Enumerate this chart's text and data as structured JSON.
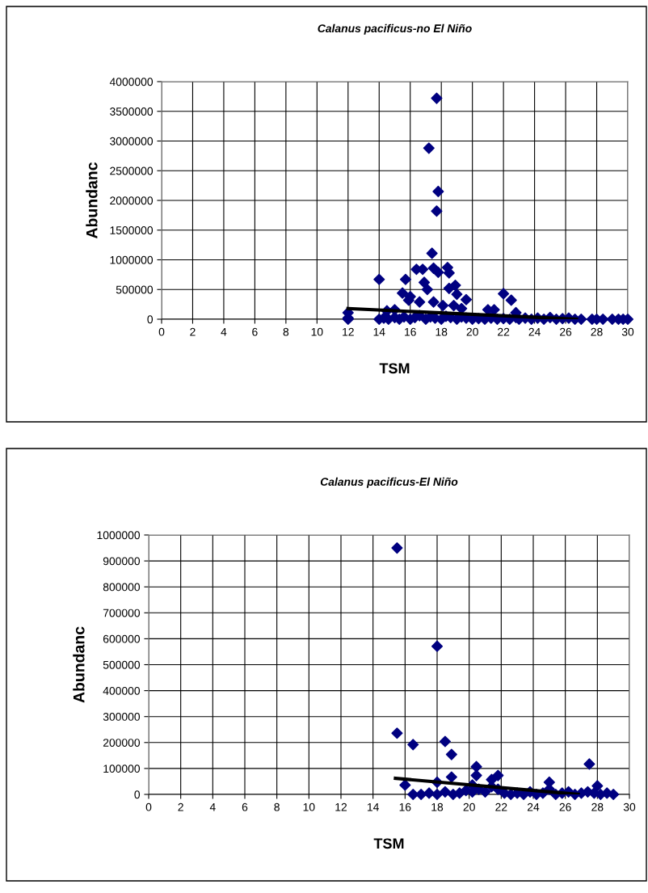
{
  "chart_data": [
    {
      "type": "scatter",
      "title": "Calanus pacificus-no El Niño",
      "xlabel": "TSM",
      "ylabel": "Abundanc",
      "xlim": [
        0,
        30
      ],
      "xticks": [
        0,
        2,
        4,
        6,
        8,
        10,
        12,
        14,
        16,
        18,
        20,
        22,
        24,
        26,
        28,
        30
      ],
      "ylim": [
        0,
        4000000
      ],
      "yticks": [
        0,
        500000,
        1000000,
        1500000,
        2000000,
        2500000,
        3000000,
        3500000,
        4000000
      ],
      "grid": true,
      "series": [
        {
          "marker": "diamond",
          "color": "#000080",
          "x": [
            17.7,
            17.2,
            17.8,
            17.7,
            17.4,
            14.0,
            15.7,
            16.4,
            16.8,
            17.5,
            17.8,
            18.4,
            18.5,
            16.9,
            17.1,
            15.5,
            16.0,
            15.9,
            18.5,
            18.9,
            19.0,
            19.6,
            16.6,
            17.5,
            18.1,
            18.8,
            19.3,
            22.0,
            22.5,
            21.0,
            21.4,
            22.8,
            12.0,
            12.0,
            12.0,
            15.0,
            14.5,
            14.0,
            14.3,
            14.6,
            15.0,
            15.3,
            15.6,
            16.0,
            16.3,
            16.6,
            17.0,
            17.3,
            17.6,
            18.0,
            18.3,
            18.6,
            19.0,
            19.3,
            19.6,
            20.0,
            20.4,
            20.8,
            21.2,
            21.6,
            22.0,
            22.4,
            22.8,
            23.0,
            23.4,
            23.8,
            24.2,
            24.6,
            25.0,
            25.4,
            25.8,
            26.2,
            26.6,
            27.0,
            27.7,
            28.0,
            28.4,
            29.0,
            29.4,
            29.7,
            30.0
          ],
          "values": [
            3720000,
            2880000,
            2150000,
            1820000,
            1110000,
            670000,
            670000,
            840000,
            840000,
            860000,
            790000,
            870000,
            780000,
            620000,
            500000,
            440000,
            380000,
            320000,
            520000,
            570000,
            420000,
            330000,
            290000,
            290000,
            230000,
            230000,
            180000,
            430000,
            320000,
            160000,
            160000,
            110000,
            110000,
            20000,
            0,
            160000,
            140000,
            0,
            20000,
            0,
            30000,
            0,
            40000,
            0,
            30000,
            60000,
            0,
            40000,
            20000,
            0,
            50000,
            30000,
            0,
            40000,
            20000,
            0,
            10000,
            0,
            20000,
            0,
            10000,
            0,
            30000,
            0,
            20000,
            0,
            20000,
            0,
            30000,
            0,
            10000,
            20000,
            0,
            0,
            0,
            0,
            0,
            0,
            0,
            0,
            0
          ]
        },
        {
          "type": "line",
          "color": "#000000",
          "x": [
            12,
            26.7
          ],
          "values": [
            180000,
            0
          ]
        }
      ]
    },
    {
      "type": "scatter",
      "title": "Calanus pacificus-El Niño",
      "xlabel": "TSM",
      "ylabel": "Abundanc",
      "xlim": [
        0,
        30
      ],
      "xticks": [
        0,
        2,
        4,
        6,
        8,
        10,
        12,
        14,
        16,
        18,
        20,
        22,
        24,
        26,
        28,
        30
      ],
      "ylim": [
        0,
        1000000
      ],
      "yticks": [
        0,
        100000,
        200000,
        300000,
        400000,
        500000,
        600000,
        700000,
        800000,
        900000,
        1000000
      ],
      "grid": true,
      "series": [
        {
          "marker": "diamond",
          "color": "#000080",
          "x": [
            15.5,
            18.0,
            15.5,
            16.5,
            18.5,
            18.9,
            27.5,
            20.45,
            20.45,
            21.8,
            21.4,
            18.9,
            25.0,
            16.0,
            18.0,
            28.0,
            20.2,
            16.5,
            17.0,
            17.5,
            18.0,
            18.5,
            19.0,
            19.4,
            19.8,
            20.2,
            20.6,
            21.0,
            21.4,
            21.8,
            22.2,
            22.6,
            23.0,
            23.4,
            23.8,
            24.2,
            24.6,
            25.0,
            25.4,
            25.8,
            26.2,
            26.6,
            27.0,
            27.4,
            27.8,
            28.2,
            28.6,
            29.0
          ],
          "values": [
            950000,
            571000,
            236000,
            192000,
            204000,
            154000,
            117000,
            107000,
            73000,
            73000,
            57000,
            67000,
            47000,
            36000,
            47000,
            33000,
            36000,
            0,
            0,
            5000,
            0,
            10000,
            0,
            5000,
            15000,
            10000,
            20000,
            10000,
            30000,
            20000,
            5000,
            0,
            5000,
            0,
            10000,
            0,
            5000,
            20000,
            0,
            5000,
            10000,
            0,
            5000,
            10000,
            5000,
            0,
            5000,
            0
          ]
        },
        {
          "type": "line",
          "color": "#000000",
          "x": [
            15.4,
            26.8
          ],
          "values": [
            62000,
            0
          ]
        }
      ]
    }
  ]
}
